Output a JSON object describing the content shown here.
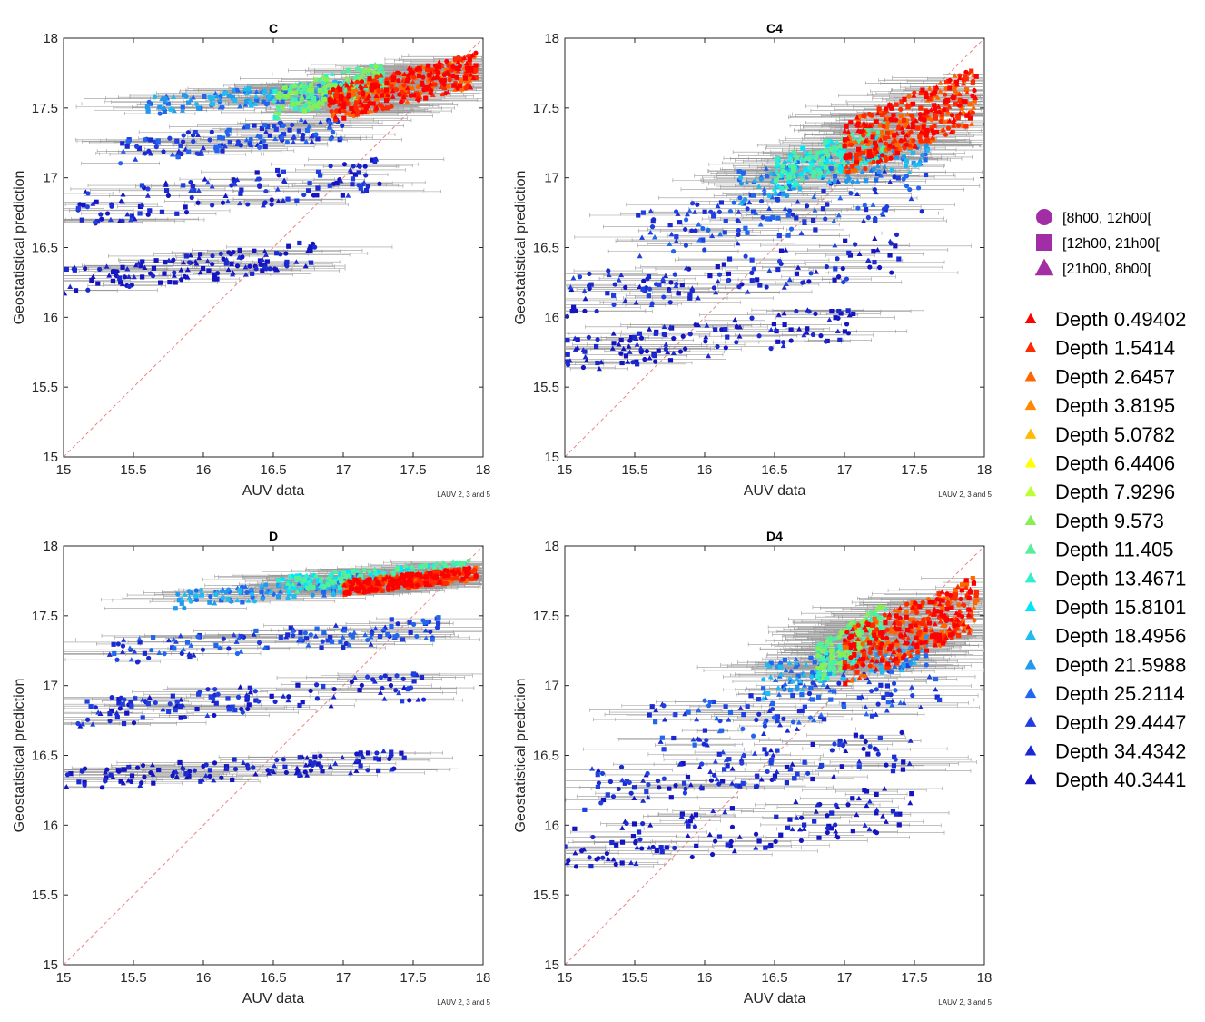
{
  "figure": {
    "depth_colors": [
      "#ff0000",
      "#ff2a00",
      "#ff6600",
      "#ff8800",
      "#ffbb00",
      "#ffff00",
      "#bbff33",
      "#88ee55",
      "#55ee99",
      "#33eecc",
      "#00e5ff",
      "#22bbee",
      "#2299ee",
      "#2266ee",
      "#1f3fe0",
      "#1a2ad0",
      "#1414c0"
    ],
    "time_marker_color": "#a22ea5"
  },
  "legend": {
    "time_windows": [
      {
        "label": "[8h00, 12h00[",
        "marker": "circle"
      },
      {
        "label": "[12h00, 21h00[",
        "marker": "square"
      },
      {
        "label": "[21h00, 8h00[",
        "marker": "triangle"
      }
    ],
    "depths": [
      "Depth 0.49402",
      "Depth 1.5414",
      "Depth 2.6457",
      "Depth 3.8195",
      "Depth 5.0782",
      "Depth 6.4406",
      "Depth 7.9296",
      "Depth 9.573",
      "Depth 11.405",
      "Depth 13.4671",
      "Depth 15.8101",
      "Depth 18.4956",
      "Depth 21.5988",
      "Depth 25.2114",
      "Depth 29.4447",
      "Depth 34.4342",
      "Depth 40.3441"
    ]
  },
  "chart_data": [
    {
      "type": "scatter",
      "title": "C",
      "xlabel": "AUV data",
      "ylabel": "Geostatistical prediction",
      "note": "LAUV 2, 3 and 5",
      "xlim": [
        15,
        18
      ],
      "ylim": [
        15,
        18
      ],
      "xticks": [
        "15",
        "15.5",
        "16",
        "16.5",
        "17",
        "17.5",
        "18"
      ],
      "yticks": [
        "15",
        "15.5",
        "16",
        "16.5",
        "17",
        "17.5",
        "18"
      ],
      "reference_line": "y = x",
      "bands": [
        {
          "x": [
            15.0,
            16.8
          ],
          "y": [
            16.15,
            16.55
          ],
          "slope": 0.15,
          "depth": 16
        },
        {
          "x": [
            15.1,
            17.3
          ],
          "y": [
            16.65,
            17.15
          ],
          "slope": 0.15,
          "depth": 15
        },
        {
          "x": [
            15.4,
            17.0
          ],
          "y": [
            17.1,
            17.45
          ],
          "slope": 0.15,
          "depth": 14
        },
        {
          "x": [
            15.6,
            17.0
          ],
          "y": [
            17.45,
            17.7
          ],
          "slope": 0.1,
          "depth": 12
        },
        {
          "x": [
            16.5,
            17.3
          ],
          "y": [
            17.4,
            17.85
          ],
          "slope": 0.2,
          "depth": 8
        },
        {
          "x": [
            16.9,
            17.95
          ],
          "y": [
            17.4,
            17.9
          ],
          "slope": 0.25,
          "depth": 1
        }
      ]
    },
    {
      "type": "scatter",
      "title": "C4",
      "xlabel": "AUV data",
      "ylabel": "Geostatistical prediction",
      "note": "LAUV 2, 3 and 5",
      "xlim": [
        15,
        18
      ],
      "ylim": [
        15,
        18
      ],
      "xticks": [
        "15",
        "15.5",
        "16",
        "16.5",
        "17",
        "17.5",
        "18"
      ],
      "yticks": [
        "15",
        "15.5",
        "16",
        "16.5",
        "17",
        "17.5",
        "18"
      ],
      "reference_line": "y = x",
      "bands": [
        {
          "x": [
            15.0,
            17.1
          ],
          "y": [
            15.6,
            16.1
          ],
          "slope": 0.2,
          "depth": 16
        },
        {
          "x": [
            15.0,
            17.4
          ],
          "y": [
            16.0,
            16.6
          ],
          "slope": 0.25,
          "depth": 15
        },
        {
          "x": [
            15.5,
            17.6
          ],
          "y": [
            16.4,
            17.1
          ],
          "slope": 0.3,
          "depth": 14
        },
        {
          "x": [
            16.2,
            17.6
          ],
          "y": [
            16.8,
            17.3
          ],
          "slope": 0.3,
          "depth": 12
        },
        {
          "x": [
            16.5,
            17.3
          ],
          "y": [
            16.9,
            17.4
          ],
          "slope": 0.3,
          "depth": 9
        },
        {
          "x": [
            17.0,
            17.95
          ],
          "y": [
            17.0,
            17.8
          ],
          "slope": 0.2,
          "depth": 1
        }
      ]
    },
    {
      "type": "scatter",
      "title": "D",
      "xlabel": "AUV data",
      "ylabel": "Geostatistical prediction",
      "note": "LAUV 2, 3 and 5",
      "xlim": [
        15,
        18
      ],
      "ylim": [
        15,
        18
      ],
      "xticks": [
        "15",
        "15.5",
        "16",
        "16.5",
        "17",
        "17.5",
        "18"
      ],
      "yticks": [
        "15",
        "15.5",
        "16",
        "16.5",
        "17",
        "17.5",
        "18"
      ],
      "reference_line": "y = x",
      "bands": [
        {
          "x": [
            15.0,
            17.5
          ],
          "y": [
            16.25,
            16.55
          ],
          "slope": 0.1,
          "depth": 16
        },
        {
          "x": [
            15.1,
            17.6
          ],
          "y": [
            16.7,
            17.1
          ],
          "slope": 0.12,
          "depth": 15
        },
        {
          "x": [
            15.3,
            17.7
          ],
          "y": [
            17.15,
            17.5
          ],
          "slope": 0.12,
          "depth": 14
        },
        {
          "x": [
            15.8,
            17.2
          ],
          "y": [
            17.55,
            17.8
          ],
          "slope": 0.1,
          "depth": 12
        },
        {
          "x": [
            16.5,
            17.9
          ],
          "y": [
            17.65,
            17.9
          ],
          "slope": 0.05,
          "depth": 9
        },
        {
          "x": [
            17.0,
            17.95
          ],
          "y": [
            17.65,
            17.85
          ],
          "slope": 0.05,
          "depth": 1
        }
      ]
    },
    {
      "type": "scatter",
      "title": "D4",
      "xlabel": "AUV data",
      "ylabel": "Geostatistical prediction",
      "note": "LAUV 2, 3 and 5",
      "xlim": [
        15,
        18
      ],
      "ylim": [
        15,
        18
      ],
      "xticks": [
        "15",
        "15.5",
        "16",
        "16.5",
        "17",
        "17.5",
        "18"
      ],
      "yticks": [
        "15",
        "15.5",
        "16",
        "16.5",
        "17",
        "17.5",
        "18"
      ],
      "reference_line": "y = x",
      "bands": [
        {
          "x": [
            15.0,
            17.5
          ],
          "y": [
            15.65,
            16.3
          ],
          "slope": 0.25,
          "depth": 16
        },
        {
          "x": [
            15.1,
            17.5
          ],
          "y": [
            16.1,
            16.7
          ],
          "slope": 0.3,
          "depth": 15
        },
        {
          "x": [
            15.6,
            17.7
          ],
          "y": [
            16.5,
            17.2
          ],
          "slope": 0.3,
          "depth": 14
        },
        {
          "x": [
            16.4,
            17.6
          ],
          "y": [
            16.9,
            17.4
          ],
          "slope": 0.3,
          "depth": 12
        },
        {
          "x": [
            16.8,
            17.3
          ],
          "y": [
            17.0,
            17.6
          ],
          "slope": 0.3,
          "depth": 8
        },
        {
          "x": [
            17.0,
            17.95
          ],
          "y": [
            17.0,
            17.8
          ],
          "slope": 0.25,
          "depth": 1
        }
      ]
    }
  ]
}
